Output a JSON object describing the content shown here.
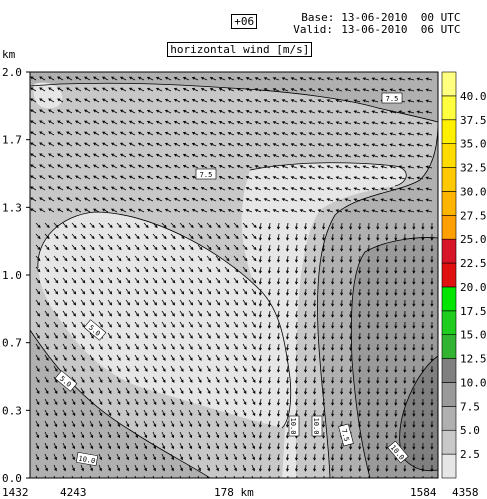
{
  "header": {
    "forecast_step": "+06",
    "base_label": "Base:",
    "base_value": "13-06-2010  00 UTC",
    "valid_label": "Valid:",
    "valid_value": "13-06-2010  06 UTC",
    "title": "horizontal wind [m/s]"
  },
  "chart_data": {
    "type": "heatmap",
    "title": "horizontal wind [m/s]",
    "y_unit": "km",
    "y_ticks": [
      "0.0",
      "0.3",
      "0.7",
      "1.0",
      "1.3",
      "1.7",
      "2.0"
    ],
    "ylim": [
      0,
      2
    ],
    "x_tick_labels": [
      "1432",
      "4243",
      "178 km",
      "1584",
      "4358"
    ],
    "colorbar": {
      "levels": [
        "2.5",
        "5.0",
        "7.5",
        "10.0",
        "12.5",
        "15.0",
        "17.5",
        "20.0",
        "22.5",
        "25.0",
        "27.5",
        "30.0",
        "32.5",
        "35.0",
        "37.5",
        "40.0"
      ],
      "colors": [
        "#e6e6e6",
        "#c8c8c8",
        "#b0b0b0",
        "#9a9a9a",
        "#808080",
        "#32b432",
        "#1ecd1e",
        "#00e600",
        "#e01010",
        "#d81428",
        "#ffa000",
        "#ffb400",
        "#ffc800",
        "#ffdc00",
        "#fff000",
        "#ffff40",
        "#ffff80"
      ]
    },
    "contour_labels": [
      "7.5",
      "7.5",
      "5.0",
      "5.0",
      "10.0",
      "10.0",
      "10.0",
      "7.5",
      "10.0",
      "10.0"
    ],
    "regions": [
      {
        "level": "5.0-7.5",
        "color": "#c8c8c8"
      },
      {
        "level": "2.5-5.0",
        "color": "#e6e6e6"
      },
      {
        "level": "7.5-10.0",
        "color": "#b0b0b0"
      },
      {
        "level": "10.0-12.5",
        "color": "#9a9a9a"
      },
      {
        "level": "12.5-15.0",
        "color": "#808080"
      }
    ]
  }
}
